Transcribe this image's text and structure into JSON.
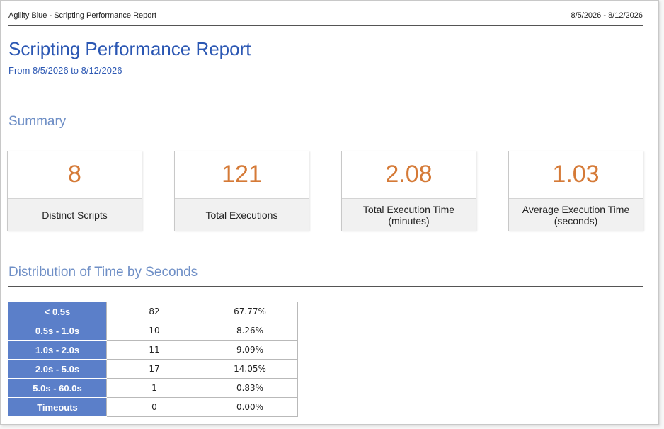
{
  "header": {
    "left_text": "Agility Blue - Scripting Performance Report",
    "right_text": "8/5/2026 - 8/12/2026"
  },
  "report": {
    "title": "Scripting Performance Report",
    "subtitle": "From 8/5/2026 to 8/12/2026"
  },
  "summary": {
    "heading": "Summary",
    "cards": [
      {
        "value": "8",
        "label": "Distinct Scripts"
      },
      {
        "value": "121",
        "label": "Total Executions"
      },
      {
        "value": "2.08",
        "label": "Total Execution Time (minutes)"
      },
      {
        "value": "1.03",
        "label": "Average Execution Time (seconds)"
      }
    ]
  },
  "distribution": {
    "heading": "Distribution of Time by Seconds",
    "rows": [
      {
        "range": "< 0.5s",
        "count": "82",
        "percent": "67.77%"
      },
      {
        "range": "0.5s - 1.0s",
        "count": "10",
        "percent": "8.26%"
      },
      {
        "range": "1.0s - 2.0s",
        "count": "11",
        "percent": "9.09%"
      },
      {
        "range": "2.0s - 5.0s",
        "count": "17",
        "percent": "14.05%"
      },
      {
        "range": "5.0s - 60.0s",
        "count": "1",
        "percent": "0.83%"
      },
      {
        "range": "Timeouts",
        "count": "0",
        "percent": "0.00%"
      }
    ]
  },
  "colors": {
    "title_blue": "#2b57b3",
    "heading_blue": "#6f8fc6",
    "value_orange": "#d57a37",
    "range_cell_blue": "#5b7fc9"
  }
}
